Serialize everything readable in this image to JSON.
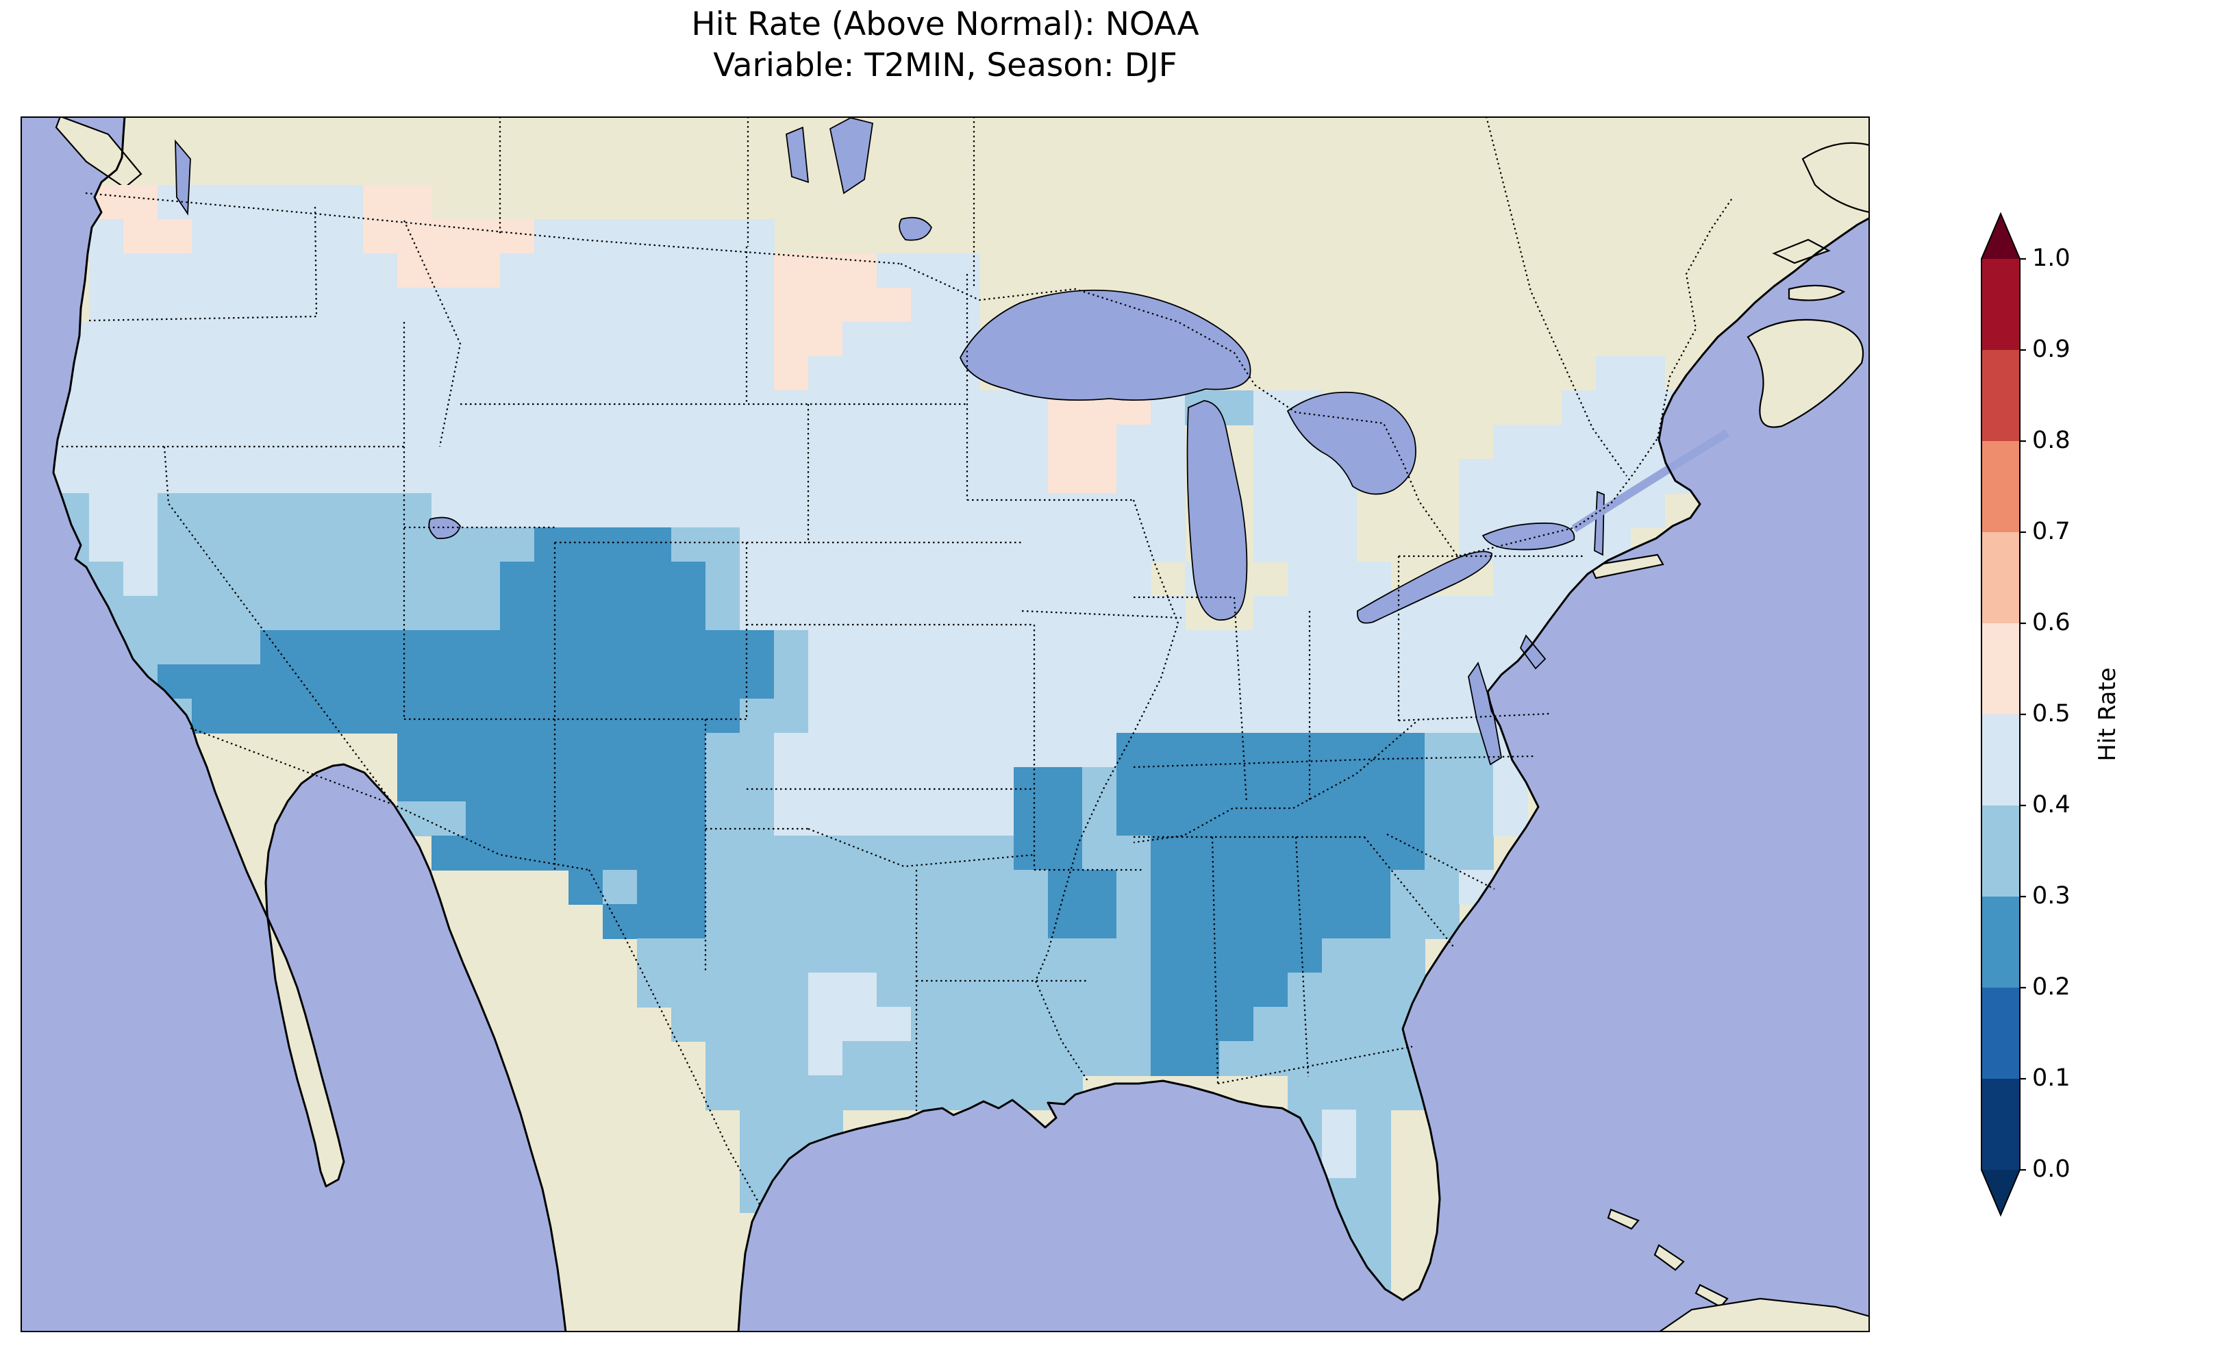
{
  "title": {
    "line1": "Hit Rate (Above Normal): NOAA",
    "line2": "Variable: T2MIN, Season: DJF"
  },
  "colorbar": {
    "label": "Hit Rate",
    "ticks": [
      "1.0",
      "0.9",
      "0.8",
      "0.7",
      "0.6",
      "0.5",
      "0.4",
      "0.3",
      "0.2",
      "0.1",
      "0.0"
    ],
    "segment_colors_bottom_to_top": [
      "#0a3b76",
      "#2166ac",
      "#4393c3",
      "#9ac8e0",
      "#d6e6f2",
      "#fbe3d6",
      "#f8c0a4",
      "#ee8d6e",
      "#ca4741",
      "#a11228"
    ],
    "under_color": "#053061",
    "over_color": "#67001f"
  },
  "map_colors": {
    "ocean": "#a4afe0",
    "land": "#ece9d2",
    "lake": "#96a5dc",
    "coastline": "#000000",
    "border": "#000000"
  },
  "chart_data": {
    "type": "heatmap",
    "title": "Hit Rate (Above Normal): NOAA",
    "subtitle": "Variable: T2MIN, Season: DJF",
    "metric": "Hit Rate (Above Normal)",
    "source_model": "NOAA",
    "variable": "T2MIN",
    "season": "DJF",
    "region": "Continental United States (CONUS)",
    "colorbar_label": "Hit Rate",
    "value_range": [
      0.0,
      1.0
    ],
    "bin_width": 0.1,
    "legend_position": "right",
    "colorbar_extend": "both",
    "bins_present_on_map": {
      "2": "0.2-0.3 (medium blue)",
      "3": "0.3-0.4 (light blue)",
      "4": "0.4-0.5 (pale blue)",
      "5": "0.5-0.6 (pale pink)"
    },
    "pattern_summary": [
      {
        "region": "Southwest (AZ, NM, W CO, S UT, S NV, SE CA)",
        "hit_rate": "0.2-0.3"
      },
      {
        "region": "Southeast (TN, N AL, GA, W Carolinas, Ozarks spots)",
        "hit_rate": "0.2-0.3"
      },
      {
        "region": "West Coast, Great Basin, Texas, Gulf Coast, Florida",
        "hit_rate": "0.3-0.4"
      },
      {
        "region": "Northern Plains, Midwest, Northeast",
        "hit_rate": "0.4-0.5"
      },
      {
        "region": "N Montana, W North Dakota, N Minnesota, Puget Sound, spots in S Florida",
        "hit_rate": "0.5-0.6"
      }
    ],
    "grid": {
      "description": "Coarse raster of the map: each char is one 50x50 px cell from the map panel top-left; digit = hit-rate bin index (value between digit*0.1 and digit*0.1+0.1); '.' = no data (outside CONUS).",
      "cell_size_px": 50,
      "cols": 54,
      "rows": 36,
      "rows_data": [
        "......................................................",
        "......................................................",
        "..5544444455..........................................",
        "..45544444555554444444................................",
        "..44444444455544444444555444..........................",
        "..44444444444444444444555544..........................",
        ".444444444444444444444554444..........................",
        ".444444444444444444444544444..................44......",
        ".4444444444444444444444444444455543344.......4444.....",
        ".444444444444444444444444444445544..444....444444.....",
        ".444444444444444444444444444445544..444...4444444.....",
        ".344333333334444444444444444444444..444...444444......",
        ".344333333333332222334444444444444..444...44444.......",
        ".33433333333332222223444444444444 4..444...4444........",
        "..33333333333322222234444444444444..4444444444........",
        "..3333322222222222222234444444444444444444444.........",
        "...322222222222222222234444444444444444444444.........",
        "....32222222222222222334444444444444444444444.........",
        "...........222222222334444444444222222222334..........",
        "...........222222222334444444223222222222334..........",
        "...........332222222334444444223222222222334..........",
        "............2222222233333333322332222222233...........",
        "................232233333333332232222222334...........",
        ".................2223333333333223222222233............",
        "..................33333333333333322222333.............",
        "..................33333443333333322223333.............",
        "...................3333444333333322233333.............",
        "....................333433333333322333333.............",
        "....................33333333333......3333.............",
        ".....................333.............343..............",
        ".....................33..............343..............",
        ".....................3...............333..............",
        ".....................................533..............",
        "......................................33..............",
        ".......................................3..............",
        "......................................................"
      ]
    }
  }
}
